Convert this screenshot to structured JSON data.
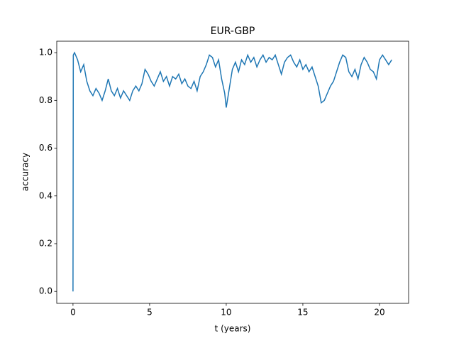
{
  "chart_data": {
    "type": "line",
    "title": "EUR-GBP",
    "xlabel": "t (years)",
    "ylabel": "accuracy",
    "series": [
      {
        "name": "accuracy",
        "color": "#1f77b4",
        "x": [
          0,
          0.02,
          0.1,
          0.3,
          0.5,
          0.7,
          0.9,
          1.1,
          1.3,
          1.5,
          1.7,
          1.9,
          2.1,
          2.3,
          2.5,
          2.7,
          2.9,
          3.1,
          3.3,
          3.5,
          3.7,
          3.9,
          4.1,
          4.3,
          4.5,
          4.7,
          4.9,
          5.1,
          5.3,
          5.5,
          5.7,
          5.9,
          6.1,
          6.3,
          6.5,
          6.7,
          6.9,
          7.1,
          7.3,
          7.5,
          7.7,
          7.9,
          8.1,
          8.3,
          8.5,
          8.7,
          8.9,
          9.1,
          9.3,
          9.5,
          9.7,
          9.9,
          10.0,
          10.2,
          10.4,
          10.6,
          10.8,
          11.0,
          11.2,
          11.4,
          11.6,
          11.8,
          12.0,
          12.2,
          12.4,
          12.6,
          12.8,
          13.0,
          13.2,
          13.4,
          13.6,
          13.8,
          14.0,
          14.2,
          14.4,
          14.6,
          14.8,
          15.0,
          15.2,
          15.4,
          15.6,
          15.8,
          16.0,
          16.2,
          16.4,
          16.6,
          16.8,
          17.0,
          17.2,
          17.4,
          17.6,
          17.8,
          18.0,
          18.2,
          18.4,
          18.6,
          18.8,
          19.0,
          19.2,
          19.4,
          19.6,
          19.8,
          20.0,
          20.2,
          20.4,
          20.6,
          20.8
        ],
        "values": [
          0.0,
          0.99,
          1.0,
          0.97,
          0.92,
          0.95,
          0.88,
          0.84,
          0.82,
          0.85,
          0.83,
          0.8,
          0.84,
          0.89,
          0.84,
          0.82,
          0.85,
          0.81,
          0.84,
          0.82,
          0.8,
          0.84,
          0.86,
          0.84,
          0.87,
          0.93,
          0.91,
          0.88,
          0.86,
          0.89,
          0.92,
          0.88,
          0.9,
          0.86,
          0.9,
          0.89,
          0.91,
          0.87,
          0.89,
          0.86,
          0.85,
          0.88,
          0.84,
          0.9,
          0.92,
          0.95,
          0.99,
          0.98,
          0.94,
          0.97,
          0.89,
          0.83,
          0.77,
          0.85,
          0.93,
          0.96,
          0.92,
          0.97,
          0.95,
          0.99,
          0.96,
          0.98,
          0.94,
          0.97,
          0.99,
          0.96,
          0.98,
          0.97,
          0.99,
          0.95,
          0.91,
          0.96,
          0.98,
          0.99,
          0.96,
          0.94,
          0.97,
          0.93,
          0.95,
          0.92,
          0.94,
          0.9,
          0.86,
          0.79,
          0.8,
          0.83,
          0.86,
          0.88,
          0.92,
          0.96,
          0.99,
          0.98,
          0.92,
          0.9,
          0.93,
          0.89,
          0.95,
          0.98,
          0.96,
          0.93,
          0.92,
          0.89,
          0.97,
          0.99,
          0.97,
          0.95,
          0.97
        ]
      }
    ],
    "xlim": [
      -1.06,
      21.9
    ],
    "ylim": [
      -0.05,
      1.048
    ],
    "xticks": [
      0,
      5,
      10,
      15,
      20
    ],
    "yticks": [
      {
        "value": 0,
        "label": "0.0"
      },
      {
        "value": 0.2,
        "label": "0.2"
      },
      {
        "value": 0.4,
        "label": "0.4"
      },
      {
        "value": 0.6,
        "label": "0.6"
      },
      {
        "value": 0.8,
        "label": "0.8"
      },
      {
        "value": 1,
        "label": "1.0"
      }
    ]
  }
}
